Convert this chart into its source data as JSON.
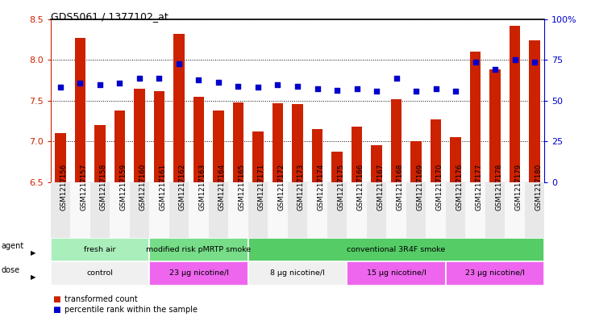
{
  "title": "GDS5061 / 1377102_at",
  "samples": [
    "GSM1217156",
    "GSM1217157",
    "GSM1217158",
    "GSM1217159",
    "GSM1217160",
    "GSM1217161",
    "GSM1217162",
    "GSM1217163",
    "GSM1217164",
    "GSM1217165",
    "GSM1217171",
    "GSM1217172",
    "GSM1217173",
    "GSM1217174",
    "GSM1217175",
    "GSM1217166",
    "GSM1217167",
    "GSM1217168",
    "GSM1217169",
    "GSM1217170",
    "GSM1217176",
    "GSM1217177",
    "GSM1217178",
    "GSM1217179",
    "GSM1217180"
  ],
  "bar_values": [
    7.1,
    8.27,
    7.2,
    7.38,
    7.65,
    7.62,
    8.32,
    7.55,
    7.38,
    7.48,
    7.12,
    7.47,
    7.46,
    7.15,
    6.88,
    7.18,
    6.95,
    7.52,
    7.0,
    7.27,
    7.05,
    8.1,
    7.88,
    8.42,
    8.24
  ],
  "dot_values": [
    7.67,
    7.72,
    7.7,
    7.72,
    7.77,
    7.77,
    7.95,
    7.75,
    7.73,
    7.68,
    7.67,
    7.7,
    7.68,
    7.65,
    7.63,
    7.65,
    7.62,
    7.77,
    7.62,
    7.65,
    7.62,
    7.97,
    7.88,
    8.0,
    7.97
  ],
  "ylim": [
    6.5,
    8.5
  ],
  "yticks_left": [
    6.5,
    7.0,
    7.5,
    8.0,
    8.5
  ],
  "yticks_right": [
    0,
    25,
    50,
    75,
    100
  ],
  "bar_color": "#cc2200",
  "dot_color": "#0000cc",
  "agent_groups": [
    {
      "label": "fresh air",
      "start": 0,
      "end": 5,
      "color": "#aaeebb"
    },
    {
      "label": "modified risk pMRTP smoke",
      "start": 5,
      "end": 10,
      "color": "#77dd88"
    },
    {
      "label": "conventional 3R4F smoke",
      "start": 10,
      "end": 25,
      "color": "#55cc66"
    }
  ],
  "dose_groups": [
    {
      "label": "control",
      "start": 0,
      "end": 5,
      "color": "#f0f0f0"
    },
    {
      "label": "23 μg nicotine/l",
      "start": 5,
      "end": 10,
      "color": "#ee66ee"
    },
    {
      "label": "8 μg nicotine/l",
      "start": 10,
      "end": 15,
      "color": "#f0f0f0"
    },
    {
      "label": "15 μg nicotine/l",
      "start": 15,
      "end": 20,
      "color": "#ee66ee"
    },
    {
      "label": "23 μg nicotine/l",
      "start": 20,
      "end": 25,
      "color": "#ee66ee"
    }
  ],
  "legend_items": [
    {
      "label": "transformed count",
      "color": "#cc2200"
    },
    {
      "label": "percentile rank within the sample",
      "color": "#0000cc"
    }
  ]
}
